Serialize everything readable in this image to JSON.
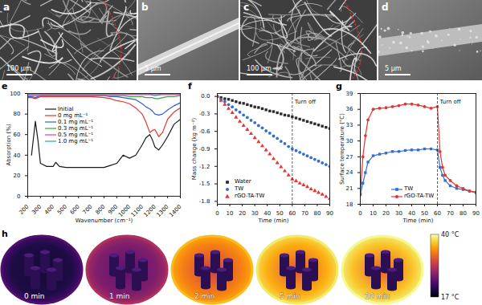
{
  "images": [
    {
      "label": "a",
      "scale_bar": "100 µm"
    },
    {
      "label": "b",
      "scale_bar": "5 µm"
    },
    {
      "label": "c",
      "scale_bar": "100 µm"
    },
    {
      "label": "d",
      "scale_bar": "5 µm"
    }
  ],
  "chart_data": [
    {
      "type": "line",
      "title": "e",
      "xlabel": "Wavenumber (cm⁻¹)",
      "ylabel": "Absorption (%)",
      "x": [
        200,
        230,
        260,
        280,
        300,
        350,
        400,
        420,
        450,
        500,
        600,
        700,
        800,
        850,
        900,
        950,
        1000,
        1050,
        1100,
        1130,
        1160,
        1180,
        1200,
        1230,
        1260,
        1300,
        1350,
        1400
      ],
      "series": [
        {
          "name": "Initial",
          "color": "#1a1a1a",
          "values": [
            null,
            40,
            73,
            55,
            32,
            29,
            29,
            33,
            29,
            28,
            28,
            28,
            28,
            30,
            32,
            40,
            37,
            40,
            50,
            57,
            60,
            55,
            48,
            45,
            50,
            58,
            70,
            75
          ]
        },
        {
          "name": "0 mg mL⁻¹",
          "color": "#e8332e",
          "values": [
            96,
            96,
            95,
            96,
            97,
            97,
            97,
            97,
            97,
            97,
            97,
            97,
            96,
            95,
            93,
            92,
            90,
            86,
            80,
            72,
            62,
            64,
            65,
            58,
            62,
            75,
            82,
            86
          ]
        },
        {
          "name": "0.1 mg mL⁻¹",
          "color": "#2f5fd0",
          "values": [
            97,
            97,
            96,
            97,
            98,
            98,
            98,
            98,
            98,
            98,
            98,
            98,
            98,
            97,
            97,
            96,
            95,
            94,
            90,
            87,
            85,
            83,
            80,
            79,
            80,
            84,
            88,
            91
          ]
        },
        {
          "name": "0.3 mg mL⁻¹",
          "color": "#3aa83a",
          "values": [
            98,
            98,
            98,
            98,
            98,
            98,
            98,
            98,
            98,
            98,
            98,
            98,
            98,
            98,
            98,
            98,
            97,
            97,
            97,
            96,
            96,
            96,
            95,
            95,
            96,
            97,
            97,
            98
          ]
        },
        {
          "name": "0.5 mg mL⁻¹",
          "color": "#d93fc0",
          "values": [
            99,
            99,
            99,
            99,
            99,
            99,
            99,
            99,
            99,
            99,
            99,
            99,
            99,
            99,
            99,
            99,
            99,
            99,
            99,
            99,
            99,
            98.5,
            98,
            98.5,
            99,
            99,
            99,
            99
          ]
        },
        {
          "name": "1.0 mg mL⁻¹",
          "color": "#22a9b3",
          "values": [
            99.5,
            99.5,
            99.5,
            99.5,
            99.5,
            99.5,
            99.5,
            99.5,
            99.5,
            99.5,
            99.5,
            99.5,
            99.5,
            99.5,
            99.5,
            99.5,
            99.5,
            99.5,
            99.5,
            99.5,
            99.5,
            99,
            99,
            99,
            99.5,
            99.5,
            99.5,
            99.5
          ]
        }
      ],
      "xlim": [
        200,
        1400
      ],
      "xticks": [
        200,
        300,
        400,
        500,
        600,
        700,
        800,
        900,
        1000,
        1100,
        1200,
        1300,
        1400
      ],
      "ylim": [
        0,
        100
      ],
      "yticks": [
        0,
        20,
        40,
        60,
        80,
        100
      ],
      "legend": "center"
    },
    {
      "type": "scatter",
      "title": "f",
      "xlabel": "Time (min)",
      "ylabel": "Mass change (kg m⁻²)",
      "x": [
        0,
        3,
        6,
        9,
        12,
        15,
        18,
        21,
        24,
        27,
        30,
        33,
        36,
        39,
        42,
        45,
        48,
        51,
        54,
        57,
        60,
        63,
        66,
        69,
        72,
        75,
        78,
        81,
        84,
        87,
        90
      ],
      "series": [
        {
          "name": "Water",
          "color": "#2a2a2a",
          "marker": "square",
          "values": [
            0,
            -0.02,
            -0.04,
            -0.05,
            -0.07,
            -0.09,
            -0.11,
            -0.12,
            -0.14,
            -0.16,
            -0.18,
            -0.19,
            -0.21,
            -0.23,
            -0.25,
            -0.26,
            -0.28,
            -0.3,
            -0.32,
            -0.33,
            -0.35,
            -0.37,
            -0.39,
            -0.41,
            -0.43,
            -0.45,
            -0.47,
            -0.49,
            -0.51,
            -0.53,
            -0.55
          ]
        },
        {
          "name": "TW",
          "color": "#2f6fd6",
          "marker": "circle",
          "values": [
            0,
            -0.05,
            -0.09,
            -0.14,
            -0.18,
            -0.23,
            -0.27,
            -0.32,
            -0.36,
            -0.41,
            -0.45,
            -0.5,
            -0.54,
            -0.59,
            -0.63,
            -0.68,
            -0.72,
            -0.77,
            -0.81,
            -0.86,
            -0.9,
            -0.93,
            -0.96,
            -0.99,
            -1.02,
            -1.05,
            -1.08,
            -1.11,
            -1.14,
            -1.17,
            -1.2
          ]
        },
        {
          "name": "rGO-TA-TW",
          "color": "#e8332e",
          "marker": "triangle",
          "values": [
            0,
            -0.07,
            -0.14,
            -0.21,
            -0.28,
            -0.36,
            -0.43,
            -0.5,
            -0.57,
            -0.64,
            -0.71,
            -0.78,
            -0.85,
            -0.92,
            -0.99,
            -1.07,
            -1.14,
            -1.21,
            -1.28,
            -1.35,
            -1.42,
            -1.45,
            -1.49,
            -1.52,
            -1.55,
            -1.59,
            -1.62,
            -1.65,
            -1.68,
            -1.72,
            -1.75
          ]
        }
      ],
      "annotations": [
        {
          "text": "Turn off",
          "x": 60
        }
      ],
      "xlim": [
        0,
        90
      ],
      "xticks": [
        0,
        10,
        20,
        30,
        40,
        50,
        60,
        70,
        80,
        90
      ],
      "ylim": [
        -1.85,
        0.05
      ],
      "yticks": [
        {
          "value": 0,
          "label": "0.0"
        },
        -0.3,
        -0.6,
        -0.9,
        -1.2,
        -1.5,
        -1.8
      ],
      "legend": "lower left"
    },
    {
      "type": "line",
      "title": "g",
      "xlabel": "Time (min)",
      "ylabel": "Surface temperature (°C)",
      "x": [
        0,
        2,
        4,
        6,
        10,
        15,
        20,
        25,
        30,
        35,
        40,
        45,
        50,
        55,
        60,
        62,
        64,
        66,
        70,
        75,
        80,
        85,
        90
      ],
      "series": [
        {
          "name": "TW",
          "color": "#2f6fd6",
          "marker": "square",
          "values": [
            19.8,
            22,
            24,
            26,
            27.2,
            27.5,
            27.7,
            28,
            28,
            28.2,
            28.3,
            28.3,
            28.5,
            28.5,
            28.3,
            25,
            23.5,
            22.5,
            21.5,
            21,
            20.8,
            20.5,
            20.2
          ]
        },
        {
          "name": "rGO-TA-TW",
          "color": "#e8332e",
          "marker": "circle",
          "values": [
            20,
            27,
            31,
            34,
            36,
            36.2,
            36.3,
            36.5,
            36.7,
            37,
            37,
            36.8,
            36.5,
            36.2,
            36.5,
            28,
            25,
            23.5,
            22.5,
            21.5,
            21,
            20.5,
            20.3
          ]
        }
      ],
      "annotations": [
        {
          "text": "Turn off",
          "x": 60
        }
      ],
      "xlim": [
        0,
        90
      ],
      "xticks": [
        0,
        10,
        20,
        30,
        40,
        50,
        60,
        70,
        80,
        90
      ],
      "ylim": [
        18,
        39
      ],
      "yticks": [
        18,
        21,
        24,
        27,
        30,
        33,
        36,
        39
      ],
      "legend": "lower center"
    }
  ],
  "thermal": {
    "label": "h",
    "frames": [
      "0 min",
      "1 min",
      "2 min",
      "5 min",
      "10 min"
    ],
    "colorbar": {
      "range": [
        17,
        40
      ],
      "ticks": [
        {
          "value": 17,
          "label": "17 °C"
        },
        {
          "value": 40,
          "label": "40 °C"
        }
      ]
    }
  }
}
